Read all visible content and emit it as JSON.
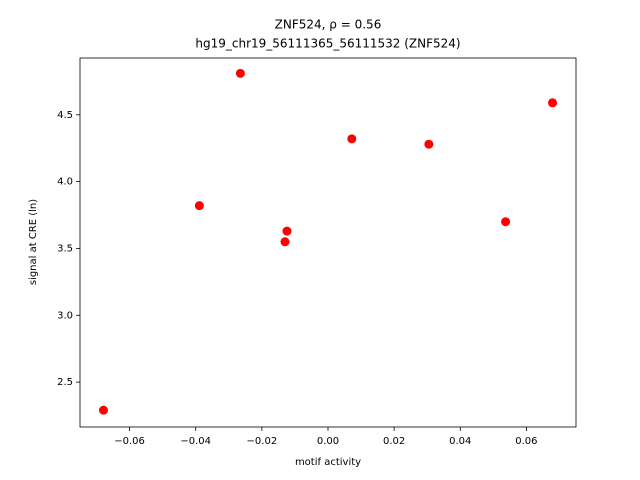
{
  "chart_data": {
    "type": "scatter",
    "title": "ZNF524, ρ = 0.56",
    "subtitle": "hg19_chr19_56111365_56111532 (ZNF524)",
    "x_label": "motif activity",
    "y_label": "signal at CRE (ln)",
    "color": "#ff0000",
    "x": [
      -0.0679,
      -0.0389,
      -0.0265,
      -0.0124,
      -0.013,
      0.0072,
      0.0305,
      0.0537,
      0.0679
    ],
    "values": [
      2.29,
      3.82,
      4.81,
      3.63,
      3.55,
      4.32,
      4.28,
      3.7,
      4.59
    ],
    "xlim": [
      -0.075,
      0.075
    ],
    "ylim": [
      2.164,
      4.925
    ],
    "xticks": [
      {
        "value": -0.06,
        "label": "−0.06"
      },
      {
        "value": -0.04,
        "label": "−0.04"
      },
      {
        "value": -0.02,
        "label": "−0.02"
      },
      {
        "value": 0,
        "label": "0.00"
      },
      0.02,
      0.04,
      0.06
    ],
    "yticks": [
      2.5,
      {
        "value": 3,
        "label": "3.0"
      },
      3.5,
      {
        "value": 4,
        "label": "4.0"
      },
      4.5
    ],
    "grid": false
  }
}
